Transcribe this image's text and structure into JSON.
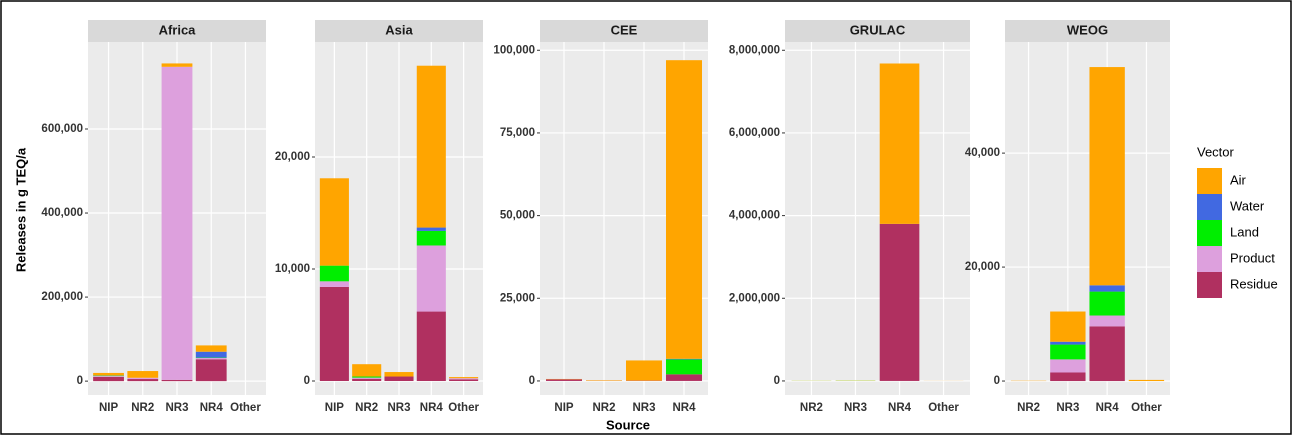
{
  "y_label": "Releases in g TEQ/a",
  "x_label": "Source",
  "legend": {
    "title": "Vector",
    "items": [
      {
        "name": "Air",
        "color": "#FFA500"
      },
      {
        "name": "Water",
        "color": "#4169E1"
      },
      {
        "name": "Land",
        "color": "#00EE00"
      },
      {
        "name": "Product",
        "color": "#DDA0DD"
      },
      {
        "name": "Residue",
        "color": "#B03060"
      }
    ]
  },
  "chart_data": [
    {
      "type": "bar",
      "stacked": true,
      "title": "Africa",
      "categories": [
        "NIP",
        "NR2",
        "NR3",
        "NR4",
        "Other"
      ],
      "series": [
        {
          "values": [
            6000,
            16000,
            8000,
            15000,
            0
          ]
        },
        {
          "values": [
            500,
            0,
            0,
            14000,
            0
          ]
        },
        {
          "values": [
            1000,
            0,
            0,
            1000,
            0
          ]
        },
        {
          "values": [
            2000,
            3000,
            745000,
            3000,
            0
          ]
        },
        {
          "values": [
            10000,
            5000,
            3000,
            52000,
            0
          ]
        }
      ],
      "ylim": [
        -33000,
        807000
      ],
      "yticks": [
        0,
        {
          "value": 200000,
          "label": "200,000"
        },
        {
          "value": 400000,
          "label": "400,000"
        },
        {
          "value": 600000,
          "label": "600,000"
        }
      ]
    },
    {
      "type": "bar",
      "stacked": true,
      "title": "Asia",
      "categories": [
        "NIP",
        "NR2",
        "NR3",
        "NR4",
        "Other"
      ],
      "series": [
        {
          "values": [
            7800,
            1100,
            400,
            14450,
            100
          ]
        },
        {
          "values": [
            0,
            0,
            0,
            300,
            0
          ]
        },
        {
          "values": [
            1400,
            100,
            0,
            1300,
            0
          ]
        },
        {
          "values": [
            500,
            100,
            0,
            5900,
            100
          ]
        },
        {
          "values": [
            8400,
            200,
            400,
            6200,
            150
          ]
        }
      ],
      "ylim": [
        -1250,
        30268
      ],
      "yticks": [
        0,
        {
          "value": 10000,
          "label": "10,000"
        },
        {
          "value": 20000,
          "label": "20,000"
        }
      ]
    },
    {
      "type": "bar",
      "stacked": true,
      "title": "CEE",
      "categories": [
        "NIP",
        "NR2",
        "NR3",
        "NR4"
      ],
      "series": [
        {
          "values": [
            100,
            150,
            6100,
            90300
          ]
        },
        {
          "values": [
            0,
            0,
            0,
            200
          ]
        },
        {
          "values": [
            0,
            0,
            0,
            4500
          ]
        },
        {
          "values": [
            0,
            0,
            0,
            0
          ]
        },
        {
          "values": [
            500,
            50,
            100,
            2000
          ]
        }
      ],
      "ylim": [
        -4250,
        102500
      ],
      "yticks": [
        0,
        {
          "value": 25000,
          "label": "25,000"
        },
        {
          "value": 50000,
          "label": "50,000"
        },
        {
          "value": 75000,
          "label": "75,000"
        },
        {
          "value": 100000,
          "label": "100,000"
        }
      ]
    },
    {
      "type": "bar",
      "stacked": true,
      "title": "GRULAC",
      "categories": [
        "NR2",
        "NR3",
        "NR4",
        "Other"
      ],
      "series": [
        {
          "values": [
            3000,
            5000,
            3880000,
            2000
          ]
        },
        {
          "values": [
            0,
            0,
            0,
            0
          ]
        },
        {
          "values": [
            2000,
            5000,
            0,
            0
          ]
        },
        {
          "values": [
            0,
            0,
            0,
            0
          ]
        },
        {
          "values": [
            0,
            0,
            3800000,
            0
          ]
        }
      ],
      "ylim": [
        -340000,
        8200000
      ],
      "yticks": [
        0,
        {
          "value": 2000000,
          "label": "2,000,000"
        },
        {
          "value": 4000000,
          "label": "4,000,000"
        },
        {
          "value": 6000000,
          "label": "6,000,000"
        },
        {
          "value": 8000000,
          "label": "8,000,000"
        }
      ]
    },
    {
      "type": "bar",
      "stacked": true,
      "title": "WEOG",
      "categories": [
        "NR2",
        "NR3",
        "NR4",
        "Other"
      ],
      "series": [
        {
          "values": [
            50,
            5300,
            38300,
            200
          ]
        },
        {
          "values": [
            0,
            500,
            1100,
            0
          ]
        },
        {
          "values": [
            0,
            2600,
            4200,
            0
          ]
        },
        {
          "values": [
            0,
            2300,
            1900,
            0
          ]
        },
        {
          "values": [
            0,
            1500,
            9600,
            0
          ]
        }
      ],
      "ylim": [
        -2450,
        59500
      ],
      "yticks": [
        0,
        {
          "value": 20000,
          "label": "20,000"
        },
        {
          "value": 40000,
          "label": "40,000"
        }
      ]
    }
  ]
}
